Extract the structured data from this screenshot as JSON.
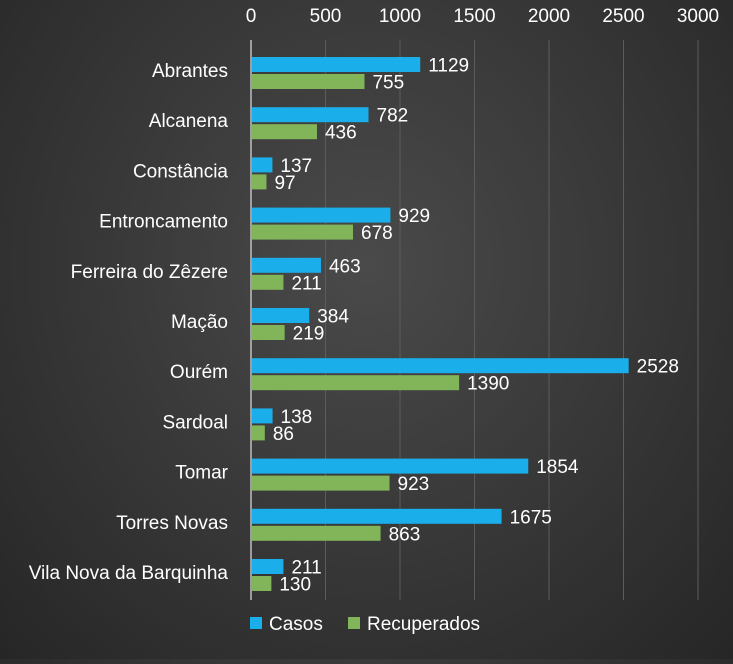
{
  "chart_data": {
    "type": "bar",
    "orientation": "horizontal",
    "categories": [
      "Abrantes",
      "Alcanena",
      "Constância",
      "Entroncamento",
      "Ferreira do Zêzere",
      "Mação",
      "Ourém",
      "Sardoal",
      "Tomar",
      "Torres Novas",
      "Vila Nova da Barquinha"
    ],
    "series": [
      {
        "name": "Casos",
        "color": "#1aaeea",
        "values": [
          1129,
          782,
          137,
          929,
          463,
          384,
          2528,
          138,
          1854,
          1675,
          211
        ]
      },
      {
        "name": "Recuperados",
        "color": "#82b55a",
        "values": [
          755,
          436,
          97,
          678,
          211,
          219,
          1390,
          86,
          923,
          863,
          130
        ]
      }
    ],
    "xlim": [
      0,
      3000
    ],
    "x_ticks": [
      "0",
      "500",
      "1000",
      "1500",
      "2000",
      "2500",
      "3000"
    ],
    "x_axis_position": "top",
    "grid": true,
    "legend_position": "bottom",
    "data_labels": true
  }
}
